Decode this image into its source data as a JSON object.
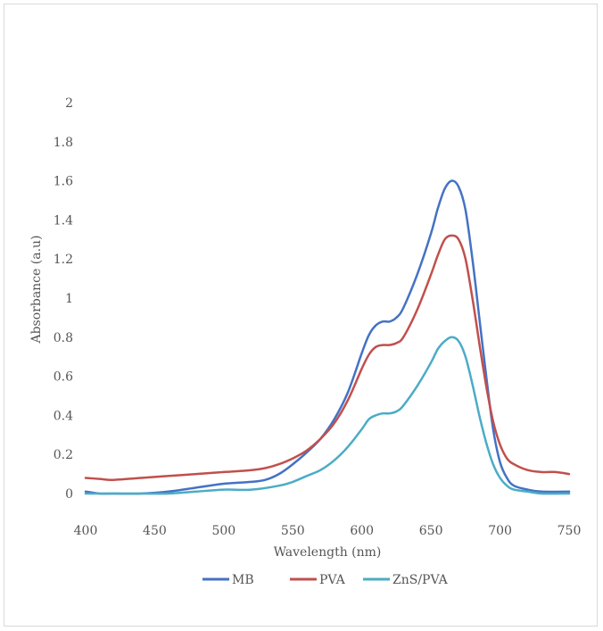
{
  "chart_data": {
    "type": "line",
    "title": "",
    "xlabel": "Wavelength (nm)",
    "ylabel": "Absorbance (a.u)",
    "xlim": [
      400,
      750
    ],
    "ylim": [
      0,
      2
    ],
    "x_ticks": [
      "400",
      "450",
      "500",
      "550",
      "600",
      "650",
      "700",
      "750"
    ],
    "y_ticks": [
      "0",
      "0.2",
      "0.4",
      "0.6",
      "0.8",
      "1",
      "1.2",
      "1.4",
      "1.6",
      "1.8",
      "2"
    ],
    "x_tick_values": [
      400,
      450,
      500,
      550,
      600,
      650,
      700,
      750
    ],
    "y_tick_values": [
      0,
      0.2,
      0.4,
      0.6,
      0.8,
      1,
      1.2,
      1.4,
      1.6,
      1.8,
      2
    ],
    "grid": false,
    "legend_position": "bottom",
    "series": [
      {
        "name": "MB",
        "color": "#4472c4",
        "points": [
          [
            400,
            0.01
          ],
          [
            410,
            0.0
          ],
          [
            420,
            0.0
          ],
          [
            440,
            0.0
          ],
          [
            460,
            0.01
          ],
          [
            480,
            0.03
          ],
          [
            500,
            0.05
          ],
          [
            520,
            0.06
          ],
          [
            530,
            0.07
          ],
          [
            540,
            0.1
          ],
          [
            550,
            0.15
          ],
          [
            560,
            0.21
          ],
          [
            570,
            0.28
          ],
          [
            580,
            0.38
          ],
          [
            590,
            0.52
          ],
          [
            600,
            0.72
          ],
          [
            605,
            0.81
          ],
          [
            610,
            0.86
          ],
          [
            615,
            0.88
          ],
          [
            620,
            0.88
          ],
          [
            625,
            0.9
          ],
          [
            630,
            0.95
          ],
          [
            640,
            1.12
          ],
          [
            650,
            1.33
          ],
          [
            655,
            1.46
          ],
          [
            660,
            1.56
          ],
          [
            665,
            1.6
          ],
          [
            670,
            1.57
          ],
          [
            675,
            1.45
          ],
          [
            680,
            1.2
          ],
          [
            685,
            0.9
          ],
          [
            690,
            0.6
          ],
          [
            695,
            0.33
          ],
          [
            700,
            0.16
          ],
          [
            705,
            0.08
          ],
          [
            710,
            0.04
          ],
          [
            720,
            0.02
          ],
          [
            730,
            0.01
          ],
          [
            750,
            0.01
          ]
        ]
      },
      {
        "name": "PVA",
        "color": "#c0504d",
        "points": [
          [
            400,
            0.08
          ],
          [
            410,
            0.075
          ],
          [
            420,
            0.07
          ],
          [
            440,
            0.08
          ],
          [
            460,
            0.09
          ],
          [
            480,
            0.1
          ],
          [
            500,
            0.11
          ],
          [
            520,
            0.12
          ],
          [
            530,
            0.13
          ],
          [
            540,
            0.15
          ],
          [
            550,
            0.18
          ],
          [
            560,
            0.22
          ],
          [
            570,
            0.28
          ],
          [
            580,
            0.36
          ],
          [
            590,
            0.48
          ],
          [
            600,
            0.64
          ],
          [
            605,
            0.71
          ],
          [
            610,
            0.75
          ],
          [
            615,
            0.76
          ],
          [
            620,
            0.76
          ],
          [
            625,
            0.77
          ],
          [
            630,
            0.8
          ],
          [
            640,
            0.94
          ],
          [
            650,
            1.12
          ],
          [
            655,
            1.22
          ],
          [
            660,
            1.3
          ],
          [
            665,
            1.32
          ],
          [
            670,
            1.3
          ],
          [
            675,
            1.2
          ],
          [
            680,
            1.0
          ],
          [
            685,
            0.77
          ],
          [
            690,
            0.55
          ],
          [
            695,
            0.37
          ],
          [
            700,
            0.25
          ],
          [
            705,
            0.18
          ],
          [
            710,
            0.15
          ],
          [
            720,
            0.12
          ],
          [
            730,
            0.11
          ],
          [
            740,
            0.11
          ],
          [
            750,
            0.1
          ]
        ]
      },
      {
        "name": "ZnS/PVA",
        "color": "#4bacc6",
        "points": [
          [
            400,
            0.0
          ],
          [
            420,
            0.0
          ],
          [
            440,
            0.0
          ],
          [
            460,
            0.0
          ],
          [
            480,
            0.01
          ],
          [
            500,
            0.02
          ],
          [
            520,
            0.02
          ],
          [
            540,
            0.04
          ],
          [
            550,
            0.06
          ],
          [
            560,
            0.09
          ],
          [
            570,
            0.12
          ],
          [
            580,
            0.17
          ],
          [
            590,
            0.24
          ],
          [
            600,
            0.33
          ],
          [
            605,
            0.38
          ],
          [
            610,
            0.4
          ],
          [
            615,
            0.41
          ],
          [
            620,
            0.41
          ],
          [
            625,
            0.42
          ],
          [
            630,
            0.45
          ],
          [
            640,
            0.55
          ],
          [
            650,
            0.67
          ],
          [
            655,
            0.74
          ],
          [
            660,
            0.78
          ],
          [
            665,
            0.8
          ],
          [
            670,
            0.78
          ],
          [
            675,
            0.7
          ],
          [
            680,
            0.56
          ],
          [
            685,
            0.4
          ],
          [
            690,
            0.26
          ],
          [
            695,
            0.15
          ],
          [
            700,
            0.08
          ],
          [
            705,
            0.04
          ],
          [
            710,
            0.02
          ],
          [
            720,
            0.01
          ],
          [
            730,
            0.0
          ],
          [
            750,
            0.0
          ]
        ]
      }
    ]
  }
}
